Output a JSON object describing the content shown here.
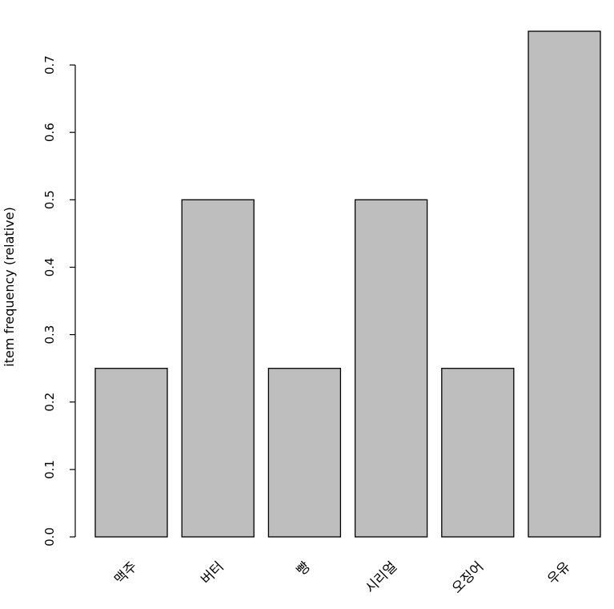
{
  "chart_data": {
    "type": "bar",
    "title": "",
    "xlabel": "",
    "ylabel": "item frequency (relative)",
    "categories": [
      "맥주",
      "버터",
      "빵",
      "시리얼",
      "오징어",
      "우유"
    ],
    "values": [
      0.25,
      0.5,
      0.25,
      0.5,
      0.25,
      0.75
    ],
    "yticks": [
      "0.0",
      "0.1",
      "0.2",
      "0.3",
      "0.4",
      "0.5",
      "0.6",
      "0.7"
    ],
    "ylim": [
      0,
      0.75
    ],
    "grid": false,
    "legend": "none",
    "bar_color": "#bebebe",
    "bar_outline_color": "#000000"
  }
}
